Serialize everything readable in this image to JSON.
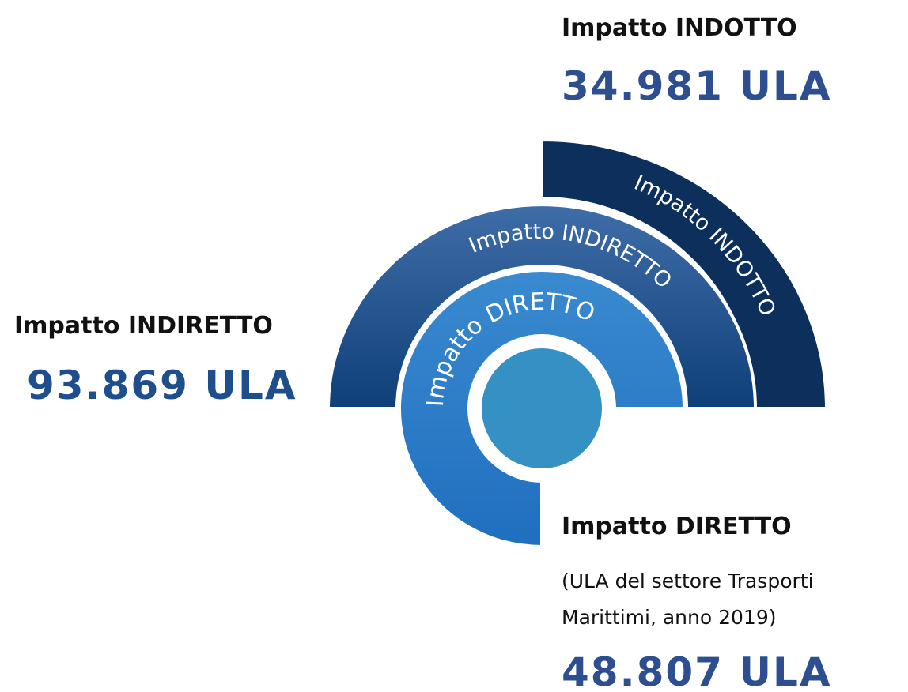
{
  "rings": [
    {
      "label": "Impatto INDOTTO"
    },
    {
      "label": "Impatto INDIRETTO"
    },
    {
      "label": "Impatto DIRETTO"
    }
  ],
  "callouts": {
    "indotto": {
      "title": "Impatto INDOTTO",
      "value": "34.981 ULA"
    },
    "indiretto": {
      "title": "Impatto INDIRETTO",
      "value": "93.869 ULA"
    },
    "diretto": {
      "title": "Impatto DIRETTO",
      "note_line1": "(ULA del settore Trasporti",
      "note_line2": "Marittimi, anno 2019)",
      "value": "48.807 ULA"
    }
  }
}
